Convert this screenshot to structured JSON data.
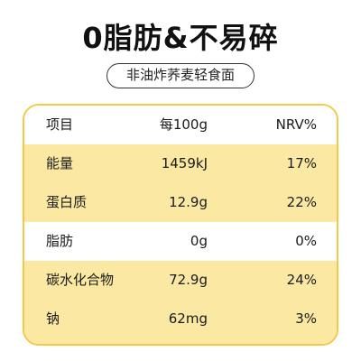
{
  "headline": "0脂肪&不易碎",
  "subtitle": "非油炸荞麦轻食面",
  "table": {
    "headers": {
      "item": "项目",
      "per100g": "每100g",
      "nrv": "NRV%"
    },
    "rows": [
      {
        "name": "能量",
        "amount": "1459kJ",
        "nrv": "17%"
      },
      {
        "name": "蛋白质",
        "amount": "12.9g",
        "nrv": "22%"
      },
      {
        "name": "脂肪",
        "amount": "0g",
        "nrv": "0%"
      },
      {
        "name": "碳水化合物",
        "amount": "72.9g",
        "nrv": "24%"
      },
      {
        "name": "钠",
        "amount": "62mg",
        "nrv": "3%"
      }
    ]
  },
  "colors": {
    "accent": "#f7c844",
    "row_fill": "#fbe9a3"
  }
}
